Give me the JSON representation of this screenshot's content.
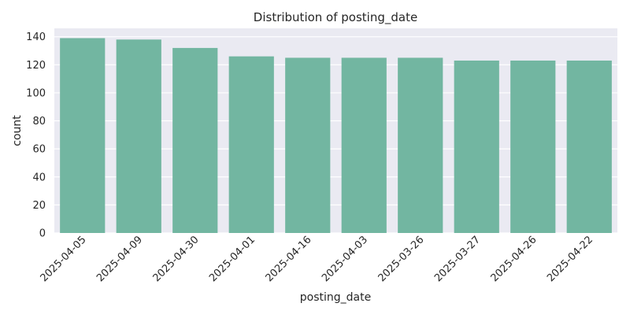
{
  "chart_data": {
    "type": "bar",
    "title": "Distribution of posting_date",
    "xlabel": "posting_date",
    "ylabel": "count",
    "categories": [
      "2025-04-05",
      "2025-04-09",
      "2025-04-30",
      "2025-04-01",
      "2025-04-16",
      "2025-04-03",
      "2025-03-26",
      "2025-03-27",
      "2025-04-26",
      "2025-04-22"
    ],
    "values": [
      139,
      138,
      132,
      126,
      125,
      125,
      125,
      123,
      123,
      123
    ],
    "ylim": [
      0,
      146
    ],
    "yticks": [
      0,
      20,
      40,
      60,
      80,
      100,
      120,
      140
    ],
    "grid": true,
    "legend": "none",
    "colors": {
      "bar": "#72b6a1",
      "plot_background": "#eaeaf2",
      "grid": "#ffffff",
      "text": "#262626"
    }
  }
}
